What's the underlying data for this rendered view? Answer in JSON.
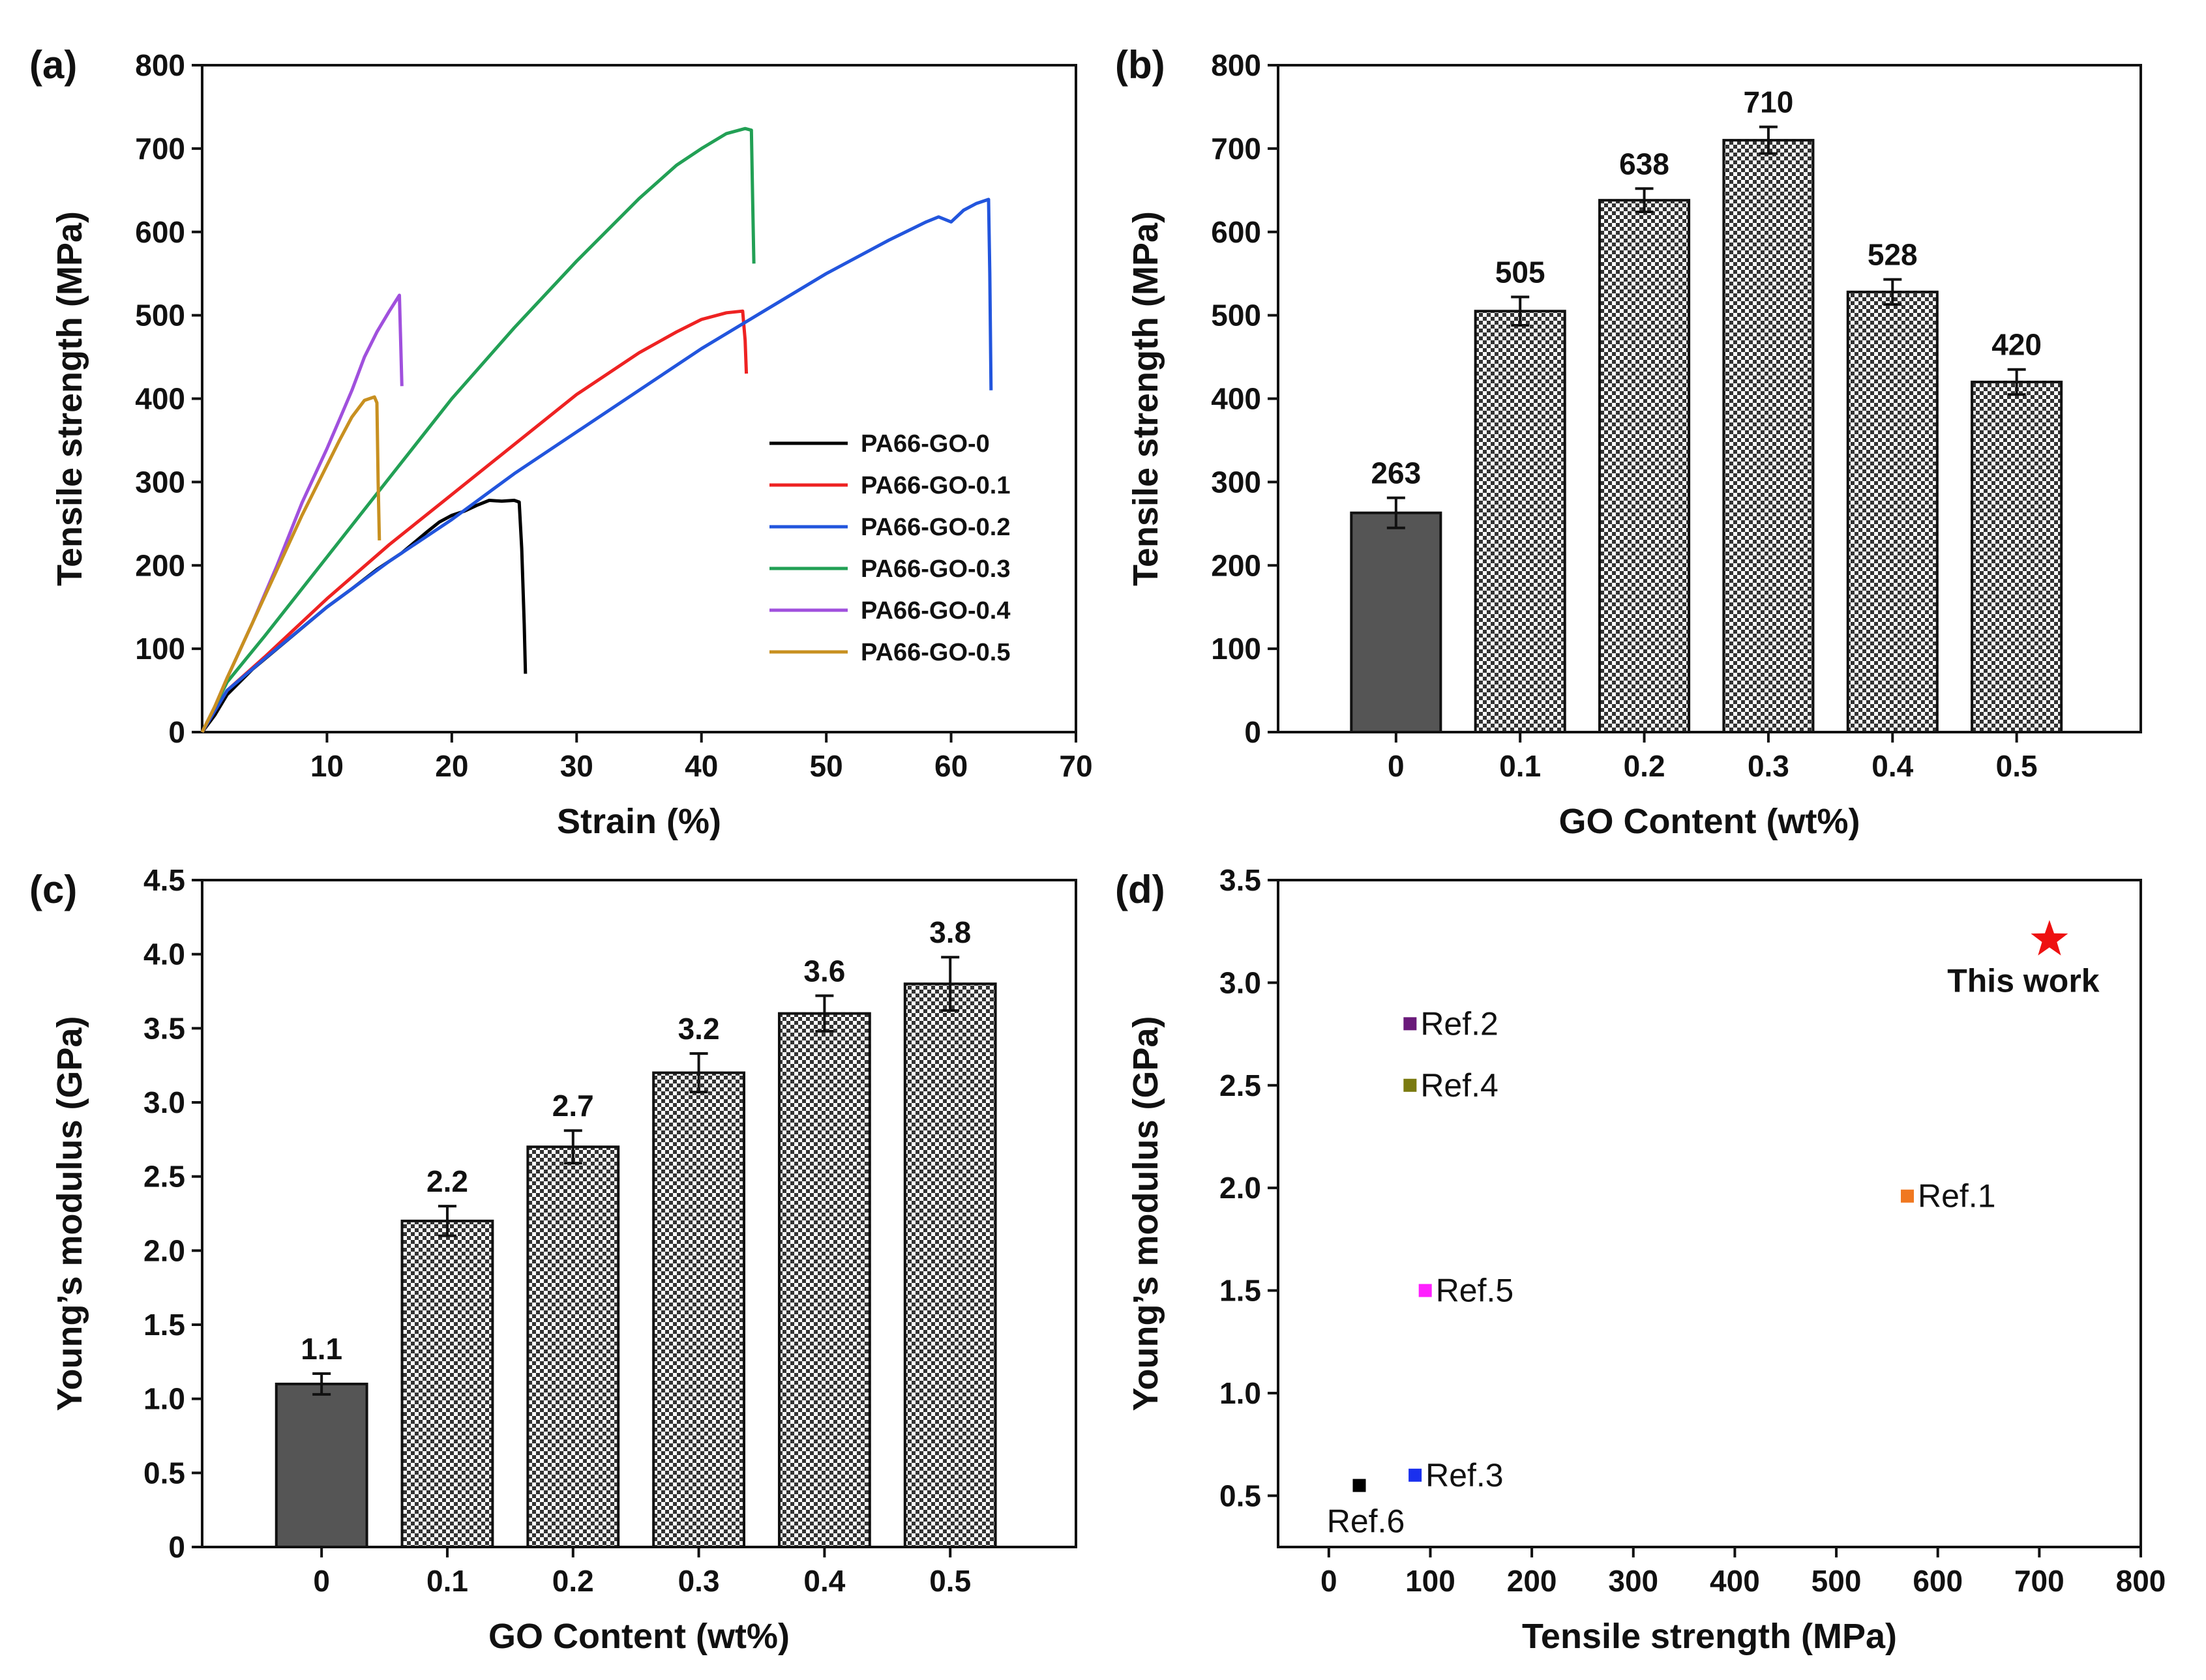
{
  "chart_data": [
    {
      "panel_label": "(a)",
      "type": "line",
      "xlabel": "Strain (%)",
      "ylabel": "Tensile strength (MPa)",
      "xlim": [
        0,
        70
      ],
      "ylim": [
        0,
        800
      ],
      "xticks": [
        10,
        20,
        30,
        40,
        50,
        60,
        70
      ],
      "yticks": [
        0,
        100,
        200,
        300,
        400,
        500,
        600,
        700,
        800
      ],
      "legend_position": "center-right",
      "series": [
        {
          "name": "PA66-GO-0",
          "color": "#000000",
          "points": [
            [
              0,
              0
            ],
            [
              1,
              20
            ],
            [
              2,
              45
            ],
            [
              4,
              75
            ],
            [
              6,
              100
            ],
            [
              8,
              125
            ],
            [
              10,
              150
            ],
            [
              12,
              172
            ],
            [
              14,
              195
            ],
            [
              16,
              215
            ],
            [
              18,
              240
            ],
            [
              19,
              252
            ],
            [
              20,
              260
            ],
            [
              21,
              265
            ],
            [
              22,
              272
            ],
            [
              23,
              278
            ],
            [
              24,
              277
            ],
            [
              25,
              278
            ],
            [
              25.4,
              276
            ],
            [
              25.6,
              220
            ],
            [
              25.8,
              130
            ],
            [
              25.9,
              70
            ]
          ]
        },
        {
          "name": "PA66-GO-0.1",
          "color": "#ee2222",
          "points": [
            [
              0,
              0
            ],
            [
              1,
              25
            ],
            [
              2,
              50
            ],
            [
              5,
              90
            ],
            [
              10,
              160
            ],
            [
              15,
              225
            ],
            [
              20,
              285
            ],
            [
              25,
              345
            ],
            [
              30,
              405
            ],
            [
              35,
              455
            ],
            [
              38,
              480
            ],
            [
              40,
              495
            ],
            [
              42,
              503
            ],
            [
              43.3,
              505
            ],
            [
              43.5,
              470
            ],
            [
              43.6,
              430
            ]
          ]
        },
        {
          "name": "PA66-GO-0.2",
          "color": "#2255dd",
          "points": [
            [
              0,
              0
            ],
            [
              1,
              25
            ],
            [
              2,
              50
            ],
            [
              5,
              88
            ],
            [
              10,
              150
            ],
            [
              15,
              205
            ],
            [
              20,
              255
            ],
            [
              25,
              310
            ],
            [
              30,
              360
            ],
            [
              35,
              410
            ],
            [
              40,
              460
            ],
            [
              45,
              505
            ],
            [
              50,
              550
            ],
            [
              55,
              590
            ],
            [
              58,
              612
            ],
            [
              59,
              618
            ],
            [
              60,
              612
            ],
            [
              61,
              626
            ],
            [
              62,
              634
            ],
            [
              63,
              639
            ],
            [
              63.1,
              550
            ],
            [
              63.2,
              410
            ]
          ]
        },
        {
          "name": "PA66-GO-0.3",
          "color": "#22a055",
          "points": [
            [
              0,
              0
            ],
            [
              1,
              30
            ],
            [
              2,
              60
            ],
            [
              5,
              115
            ],
            [
              10,
              210
            ],
            [
              15,
              305
            ],
            [
              20,
              400
            ],
            [
              25,
              485
            ],
            [
              30,
              565
            ],
            [
              35,
              640
            ],
            [
              38,
              680
            ],
            [
              40,
              700
            ],
            [
              42,
              718
            ],
            [
              43.5,
              724
            ],
            [
              44,
              722
            ],
            [
              44.1,
              640
            ],
            [
              44.2,
              562
            ]
          ]
        },
        {
          "name": "PA66-GO-0.4",
          "color": "#a050dd",
          "points": [
            [
              0,
              0
            ],
            [
              1,
              30
            ],
            [
              2,
              65
            ],
            [
              4,
              130
            ],
            [
              6,
              200
            ],
            [
              8,
              275
            ],
            [
              10,
              340
            ],
            [
              11,
              375
            ],
            [
              12,
              410
            ],
            [
              13,
              450
            ],
            [
              14,
              480
            ],
            [
              15,
              505
            ],
            [
              15.8,
              524
            ],
            [
              15.9,
              470
            ],
            [
              16,
              415
            ]
          ]
        },
        {
          "name": "PA66-GO-0.5",
          "color": "#c89020",
          "points": [
            [
              0,
              0
            ],
            [
              1,
              30
            ],
            [
              2,
              65
            ],
            [
              4,
              130
            ],
            [
              6,
              195
            ],
            [
              8,
              260
            ],
            [
              10,
              320
            ],
            [
              11,
              350
            ],
            [
              12,
              378
            ],
            [
              13,
              398
            ],
            [
              13.8,
              402
            ],
            [
              14,
              395
            ],
            [
              14.1,
              300
            ],
            [
              14.2,
              230
            ]
          ]
        }
      ]
    },
    {
      "panel_label": "(b)",
      "type": "bar",
      "xlabel": "GO Content (wt%)",
      "ylabel": "Tensile strength (MPa)",
      "ylim": [
        0,
        800
      ],
      "yticks": [
        0,
        100,
        200,
        300,
        400,
        500,
        600,
        700,
        800
      ],
      "categories": [
        "0",
        "0.1",
        "0.2",
        "0.3",
        "0.4",
        "0.5"
      ],
      "values": [
        263,
        505,
        638,
        710,
        528,
        420
      ],
      "value_labels": [
        "263",
        "505",
        "638",
        "710",
        "528",
        "420"
      ],
      "errors": [
        18,
        17,
        14,
        16,
        15,
        15
      ]
    },
    {
      "panel_label": "(c)",
      "type": "bar",
      "xlabel": "GO Content (wt%)",
      "ylabel": "Young’s modulus (GPa)",
      "ylim": [
        0,
        4.5
      ],
      "yticks": [
        0,
        0.5,
        1.0,
        1.5,
        2.0,
        2.5,
        3.0,
        3.5,
        4.0,
        4.5
      ],
      "ytick_labels": [
        "0",
        "0.5",
        "1.0",
        "1.5",
        "2.0",
        "2.5",
        "3.0",
        "3.5",
        "4.0",
        "4.5"
      ],
      "categories": [
        "0",
        "0.1",
        "0.2",
        "0.3",
        "0.4",
        "0.5"
      ],
      "values": [
        1.1,
        2.2,
        2.7,
        3.2,
        3.6,
        3.8
      ],
      "value_labels": [
        "1.1",
        "2.2",
        "2.7",
        "3.2",
        "3.6",
        "3.8"
      ],
      "errors": [
        0.07,
        0.1,
        0.11,
        0.13,
        0.12,
        0.18
      ]
    },
    {
      "panel_label": "(d)",
      "type": "scatter",
      "xlabel": "Tensile strength (MPa)",
      "ylabel": "Young’s modulus (GPa)",
      "xlim": [
        -50,
        800
      ],
      "ylim": [
        0.25,
        3.5
      ],
      "xticks": [
        0,
        100,
        200,
        300,
        400,
        500,
        600,
        700,
        800
      ],
      "yticks": [
        0.5,
        1.0,
        1.5,
        2.0,
        2.5,
        3.0,
        3.5
      ],
      "ytick_labels": [
        "0.5",
        "1.0",
        "1.5",
        "2.0",
        "2.5",
        "3.0",
        "3.5"
      ],
      "points": [
        {
          "label": "Ref.2",
          "x": 80,
          "y": 2.8,
          "color": "#6a1a7a",
          "marker": "square",
          "label_side": "right"
        },
        {
          "label": "Ref.4",
          "x": 80,
          "y": 2.5,
          "color": "#7a7a10",
          "marker": "square",
          "label_side": "right"
        },
        {
          "label": "Ref.1",
          "x": 570,
          "y": 1.96,
          "color": "#f07820",
          "marker": "square",
          "label_side": "right"
        },
        {
          "label": "Ref.5",
          "x": 95,
          "y": 1.5,
          "color": "#ff20ff",
          "marker": "square",
          "label_side": "right"
        },
        {
          "label": "Ref.3",
          "x": 85,
          "y": 0.6,
          "color": "#1a30ee",
          "marker": "square",
          "label_side": "right"
        },
        {
          "label": "Ref.6",
          "x": 30,
          "y": 0.55,
          "color": "#000000",
          "marker": "square",
          "label_side": "below"
        },
        {
          "label": "This work",
          "x": 710,
          "y": 3.21,
          "color": "#ee1111",
          "marker": "star",
          "label_side": "below"
        }
      ]
    }
  ]
}
